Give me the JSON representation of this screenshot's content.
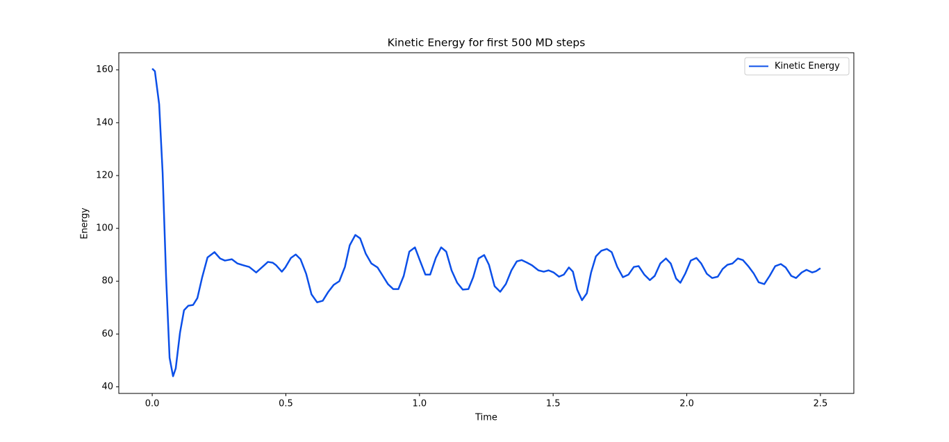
{
  "chart_data": {
    "type": "line",
    "title": "Kinetic Energy for first 500 MD steps",
    "x_label": "Time",
    "y_label": "Energy",
    "x": [
      0,
      0.01,
      0.026,
      0.039,
      0.052,
      0.065,
      0.078,
      0.088,
      0.104,
      0.119,
      0.135,
      0.153,
      0.169,
      0.187,
      0.207,
      0.233,
      0.254,
      0.272,
      0.298,
      0.319,
      0.342,
      0.363,
      0.389,
      0.41,
      0.433,
      0.451,
      0.464,
      0.485,
      0.498,
      0.519,
      0.537,
      0.555,
      0.576,
      0.596,
      0.617,
      0.638,
      0.659,
      0.679,
      0.7,
      0.721,
      0.739,
      0.76,
      0.778,
      0.799,
      0.82,
      0.843,
      0.861,
      0.882,
      0.902,
      0.921,
      0.941,
      0.962,
      0.983,
      1.001,
      1.022,
      1.04,
      1.061,
      1.081,
      1.1,
      1.12,
      1.141,
      1.162,
      1.183,
      1.201,
      1.221,
      1.242,
      1.26,
      1.281,
      1.302,
      1.323,
      1.344,
      1.364,
      1.382,
      1.403,
      1.421,
      1.445,
      1.465,
      1.483,
      1.502,
      1.522,
      1.54,
      1.559,
      1.574,
      1.59,
      1.608,
      1.626,
      1.642,
      1.66,
      1.68,
      1.701,
      1.719,
      1.74,
      1.761,
      1.782,
      1.802,
      1.82,
      1.841,
      1.862,
      1.88,
      1.901,
      1.922,
      1.94,
      1.96,
      1.976,
      1.994,
      2.015,
      2.036,
      2.054,
      2.075,
      2.095,
      2.116,
      2.134,
      2.152,
      2.171,
      2.191,
      2.21,
      2.23,
      2.25,
      2.269,
      2.29,
      2.31,
      2.331,
      2.352,
      2.37,
      2.391,
      2.409,
      2.43,
      2.448,
      2.469,
      2.484,
      2.5
    ],
    "series": [
      {
        "name": "Kinetic Energy",
        "color": "#0b4fe8",
        "values": [
          160.5,
          159.5,
          147,
          121,
          81.5,
          51,
          44,
          47,
          60.5,
          69,
          70.7,
          71,
          73.6,
          81.5,
          89,
          91,
          88.6,
          87.8,
          88.3,
          86.7,
          86,
          85.4,
          83.3,
          85.2,
          87.3,
          87,
          86,
          83.6,
          85.2,
          88.8,
          90.1,
          88.3,
          82.8,
          75,
          72,
          72.6,
          76,
          78.6,
          80,
          85.4,
          93.6,
          97.5,
          96.2,
          90.4,
          86.7,
          85.2,
          82.3,
          78.9,
          77,
          77,
          82,
          91.2,
          92.8,
          88,
          82.5,
          82.5,
          88.8,
          92.8,
          91.2,
          84.1,
          79.4,
          76.8,
          77,
          81.5,
          88.6,
          89.9,
          86.2,
          78.1,
          76,
          78.9,
          84.1,
          87.5,
          88,
          87,
          86,
          84.1,
          83.6,
          84.1,
          83.3,
          81.7,
          82.5,
          85.2,
          83.6,
          76.8,
          72.8,
          75.4,
          83.3,
          89.4,
          91.5,
          92.2,
          91,
          85.4,
          81.5,
          82.5,
          85.4,
          85.7,
          82.5,
          80.4,
          82,
          86.7,
          88.6,
          86.7,
          81,
          79.4,
          82.8,
          87.8,
          88.8,
          86.7,
          82.8,
          81.2,
          81.7,
          84.6,
          86.2,
          86.7,
          88.6,
          88,
          85.7,
          83,
          79.6,
          78.9,
          82,
          85.7,
          86.5,
          85.2,
          82,
          81.2,
          83.3,
          84.3,
          83.3,
          83.8,
          84.9
        ]
      }
    ],
    "xlim": [
      -0.125,
      2.625
    ],
    "ylim": [
      37.5,
      166.5
    ],
    "xticks": [
      {
        "value": 0,
        "label": "0.0"
      },
      {
        "value": 0.5,
        "label": "0.5"
      },
      {
        "value": 1,
        "label": "1.0"
      },
      {
        "value": 1.5,
        "label": "1.5"
      },
      {
        "value": 2,
        "label": "2.0"
      },
      {
        "value": 2.5,
        "label": "2.5"
      }
    ],
    "yticks": [
      40,
      60,
      80,
      100,
      120,
      140,
      160
    ],
    "legend": "upper right",
    "grid": false
  }
}
